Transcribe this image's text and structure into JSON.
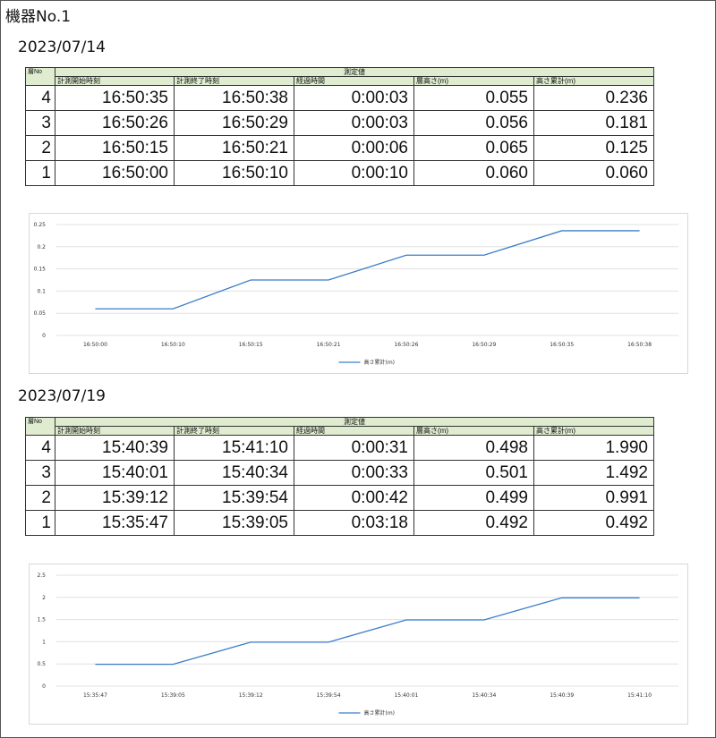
{
  "title": "機器No.1",
  "headers": {
    "row_no": "層No",
    "group": "測定値",
    "start": "計測開始時刻",
    "end": "計測終了時刻",
    "elapsed": "経過時間",
    "layer_height": "層高さ(m)",
    "cumulative": "高さ累計(m)"
  },
  "sections": [
    {
      "date": "2023/07/14",
      "rows": [
        {
          "no": "4",
          "start": "16:50:35",
          "end": "16:50:38",
          "elapsed": "0:00:03",
          "layer": "0.055",
          "cum": "0.236"
        },
        {
          "no": "3",
          "start": "16:50:26",
          "end": "16:50:29",
          "elapsed": "0:00:03",
          "layer": "0.056",
          "cum": "0.181"
        },
        {
          "no": "2",
          "start": "16:50:15",
          "end": "16:50:21",
          "elapsed": "0:00:06",
          "layer": "0.065",
          "cum": "0.125"
        },
        {
          "no": "1",
          "start": "16:50:00",
          "end": "16:50:10",
          "elapsed": "0:00:10",
          "layer": "0.060",
          "cum": "0.060"
        }
      ]
    },
    {
      "date": "2023/07/19",
      "rows": [
        {
          "no": "4",
          "start": "15:40:39",
          "end": "15:41:10",
          "elapsed": "0:00:31",
          "layer": "0.498",
          "cum": "1.990"
        },
        {
          "no": "3",
          "start": "15:40:01",
          "end": "15:40:34",
          "elapsed": "0:00:33",
          "layer": "0.501",
          "cum": "1.492"
        },
        {
          "no": "2",
          "start": "15:39:12",
          "end": "15:39:54",
          "elapsed": "0:00:42",
          "layer": "0.499",
          "cum": "0.991"
        },
        {
          "no": "1",
          "start": "15:35:47",
          "end": "15:39:05",
          "elapsed": "0:03:18",
          "layer": "0.492",
          "cum": "0.492"
        }
      ]
    }
  ],
  "chart_data": [
    {
      "type": "line",
      "x": [
        "16:50:00",
        "16:50:10",
        "16:50:15",
        "16:50:21",
        "16:50:26",
        "16:50:29",
        "16:50:35",
        "16:50:38"
      ],
      "series": [
        {
          "name": "高さ累計(m)",
          "values": [
            0.06,
            0.06,
            0.125,
            0.125,
            0.181,
            0.181,
            0.236,
            0.236
          ]
        }
      ],
      "yticks": [
        "0",
        "0.05",
        "0.1",
        "0.15",
        "0.2",
        "0.25"
      ],
      "ylim": [
        0,
        0.25
      ],
      "legend": "bottom",
      "color": "#3a7dc9"
    },
    {
      "type": "line",
      "x": [
        "15:35:47",
        "15:39:05",
        "15:39:12",
        "15:39:54",
        "15:40:01",
        "15:40:34",
        "15:40:39",
        "15:41:10"
      ],
      "series": [
        {
          "name": "高さ累計(m)",
          "values": [
            0.492,
            0.492,
            0.991,
            0.991,
            1.492,
            1.492,
            1.99,
            1.99
          ]
        }
      ],
      "yticks": [
        "0",
        "0.5",
        "1",
        "1.5",
        "2",
        "2.5"
      ],
      "ylim": [
        0,
        2.5
      ],
      "legend": "bottom",
      "color": "#3a7dc9"
    }
  ]
}
